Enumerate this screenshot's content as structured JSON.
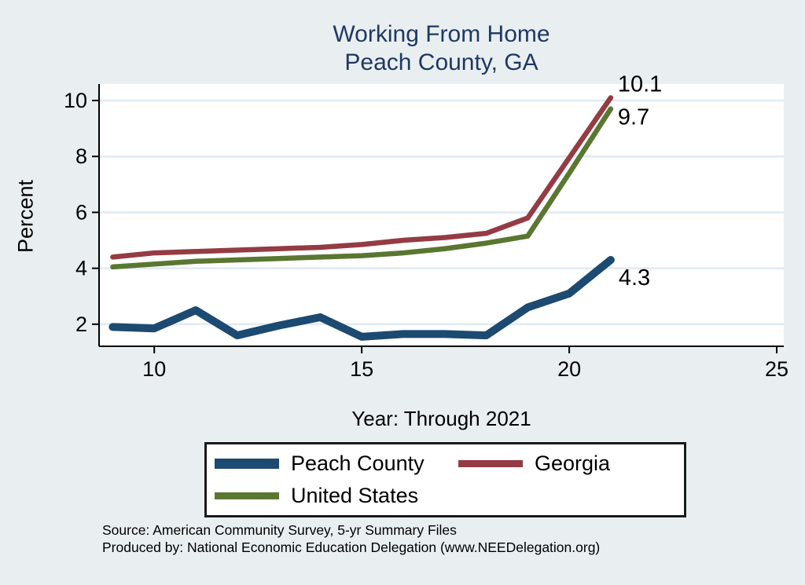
{
  "title": {
    "line1": "Working From Home",
    "line2": "Peach County, GA"
  },
  "axes": {
    "ylabel": "Percent",
    "xlabel": "Year: Through 2021"
  },
  "legend": {
    "items": [
      {
        "label": "Peach County",
        "color_key": "peach_county"
      },
      {
        "label": "Georgia",
        "color_key": "georgia"
      },
      {
        "label": "United States",
        "color_key": "united_states"
      }
    ]
  },
  "footer": {
    "source_line": "Source: American Community Survey, 5-yr Summary Files",
    "produced_line": "Produced by: National Economic Education Delegation (www.NEEDelegation.org)"
  },
  "colors": {
    "background": "#e9eff1",
    "plot_background": "#ffffff",
    "grid": "#dfeaf2",
    "axis": "#000000",
    "title_text": "#1f3864",
    "peach_county": "#1c4a71",
    "georgia": "#943b43",
    "united_states": "#5a7731"
  },
  "chart_data": {
    "type": "line",
    "title": "Working From Home — Peach County, GA",
    "xlabel": "Year: Through 2021",
    "ylabel": "Percent",
    "x": [
      9,
      10,
      11,
      12,
      13,
      14,
      15,
      16,
      17,
      18,
      19,
      20,
      21
    ],
    "series": [
      {
        "name": "Peach County",
        "color_key": "peach_county",
        "values": [
          1.9,
          1.85,
          2.5,
          1.6,
          1.95,
          2.25,
          1.55,
          1.65,
          1.65,
          1.6,
          2.6,
          3.1,
          4.3
        ],
        "end_label": "4.3",
        "line_width": 10,
        "label_dx": 10,
        "label_dy": 32
      },
      {
        "name": "Georgia",
        "color_key": "georgia",
        "values": [
          4.4,
          4.55,
          4.6,
          4.65,
          4.7,
          4.75,
          4.85,
          5.0,
          5.1,
          5.25,
          5.8,
          7.95,
          10.1
        ],
        "end_label": "10.1",
        "line_width": 6.5,
        "label_dx": 9,
        "label_dy": -8
      },
      {
        "name": "United States",
        "color_key": "united_states",
        "values": [
          4.05,
          4.15,
          4.25,
          4.3,
          4.35,
          4.4,
          4.45,
          4.55,
          4.7,
          4.9,
          5.15,
          7.4,
          9.7
        ],
        "end_label": "9.7",
        "line_width": 6.5,
        "label_dx": 9,
        "label_dy": 20
      }
    ],
    "xticks": [
      10,
      15,
      20,
      25
    ],
    "yticks": [
      2,
      4,
      6,
      8,
      10
    ],
    "xlim": [
      8.67,
      25.17
    ],
    "ylim": [
      1.21,
      10.59
    ],
    "grid": "horizontal",
    "legend_position": "bottom",
    "tick_font_size": 27,
    "end_label_font_size": 29
  }
}
